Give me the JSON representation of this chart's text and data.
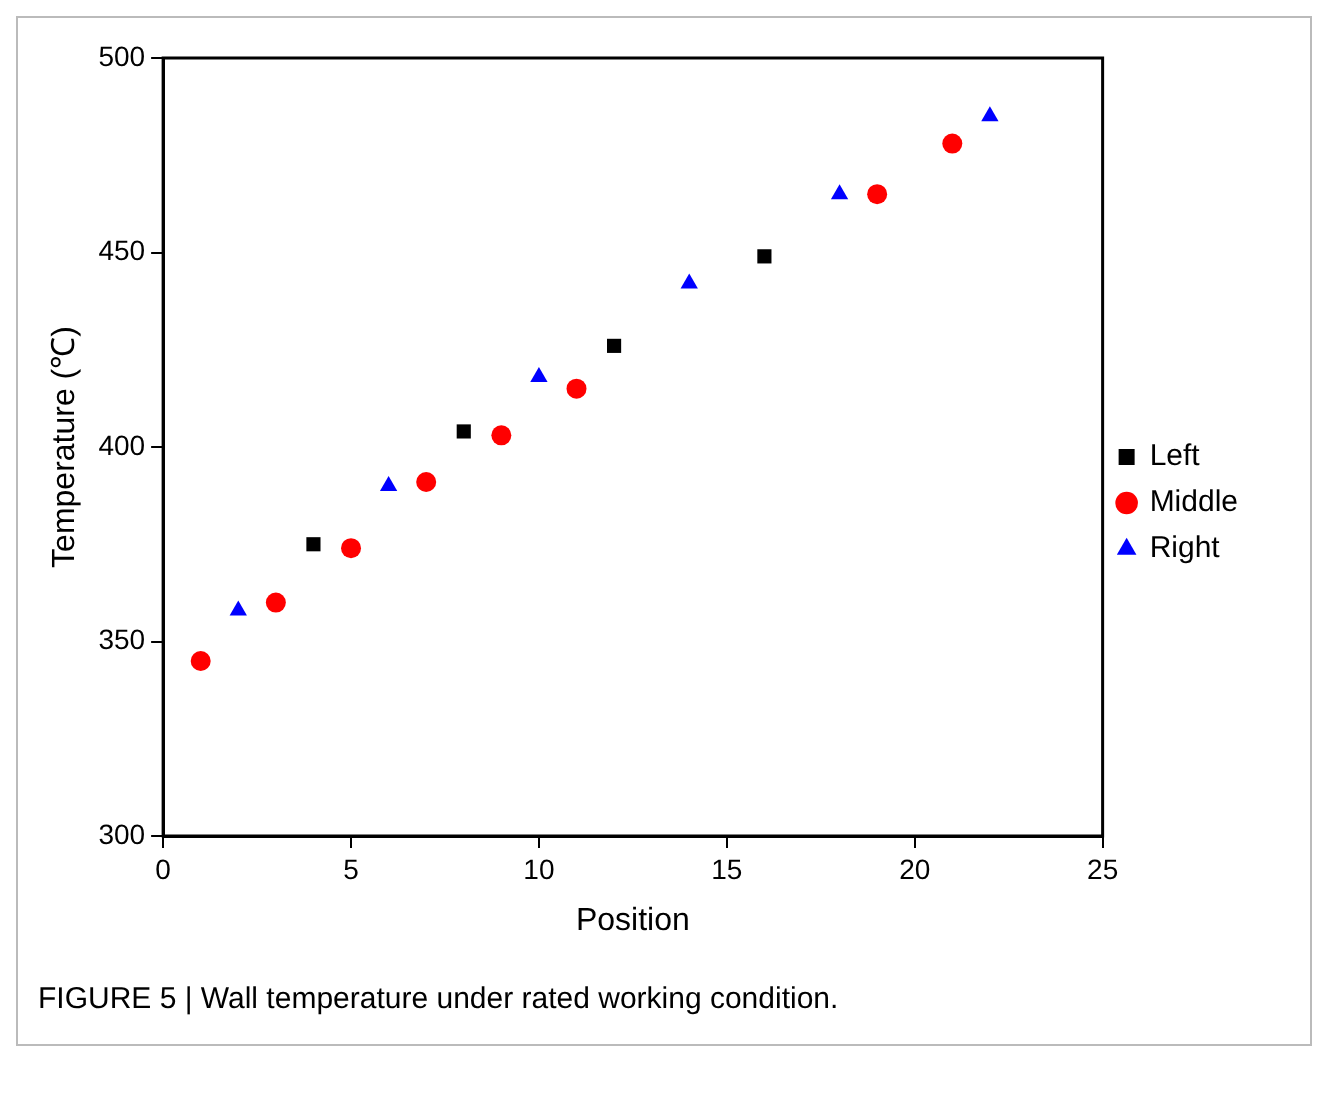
{
  "chart_data": {
    "type": "scatter",
    "xlabel": "Position",
    "ylabel": "Temperature (℃)",
    "xlim": [
      0,
      25
    ],
    "xticks": [
      0,
      5,
      10,
      15,
      20,
      25
    ],
    "ylim": [
      300,
      500
    ],
    "yticks": [
      300,
      350,
      400,
      450,
      500
    ],
    "series": [
      {
        "name": "Left",
        "color": "#000000",
        "marker": "square",
        "x": [
          4,
          8,
          12,
          16
        ],
        "values": [
          375,
          404,
          426,
          449
        ]
      },
      {
        "name": "Middle",
        "color": "#ff0000",
        "marker": "circle",
        "x": [
          1,
          3,
          5,
          7,
          9,
          11,
          19,
          21
        ],
        "values": [
          345,
          360,
          374,
          391,
          403,
          415,
          465,
          478
        ]
      },
      {
        "name": "Right",
        "color": "#0000ff",
        "marker": "triangle",
        "x": [
          2,
          6,
          10,
          14,
          18,
          22
        ],
        "values": [
          358,
          390,
          418,
          442,
          465,
          485
        ]
      }
    ],
    "legend": "right",
    "grid": false,
    "annotations": [
      "FIGURE 5 | Wall temperature under rated working condition."
    ]
  }
}
